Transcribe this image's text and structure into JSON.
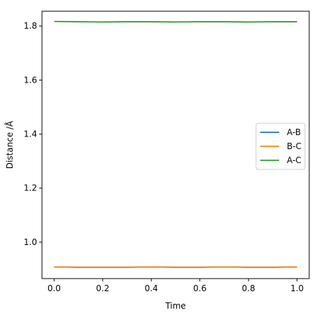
{
  "chart_data": {
    "type": "line",
    "xlabel": "Time",
    "ylabel": "Distance /Å",
    "xlim": [
      -0.05,
      1.05
    ],
    "ylim": [
      0.865,
      1.855
    ],
    "xticks": [
      0.0,
      0.2,
      0.4,
      0.6,
      0.8,
      1.0
    ],
    "xtick_labels": [
      "0.0",
      "0.2",
      "0.4",
      "0.6",
      "0.8",
      "1.0"
    ],
    "yticks": [
      1.0,
      1.2,
      1.4,
      1.6,
      1.8
    ],
    "ytick_labels": [
      "1.0",
      "1.2",
      "1.4",
      "1.6",
      "1.8"
    ],
    "grid": false,
    "legend_position": "right",
    "x": [
      0.0,
      0.1,
      0.2,
      0.3,
      0.4,
      0.5,
      0.6,
      0.7,
      0.8,
      0.9,
      1.0
    ],
    "series": [
      {
        "name": "A-B",
        "color": "#1f77b4",
        "values": [
          0.908,
          0.907,
          0.907,
          0.907,
          0.908,
          0.907,
          0.907,
          0.908,
          0.907,
          0.907,
          0.908
        ]
      },
      {
        "name": "B-C",
        "color": "#ff7f0e",
        "values": [
          0.908,
          0.907,
          0.907,
          0.907,
          0.908,
          0.907,
          0.907,
          0.908,
          0.907,
          0.907,
          0.908
        ]
      },
      {
        "name": "A-C",
        "color": "#2ca02c",
        "values": [
          1.817,
          1.816,
          1.815,
          1.816,
          1.816,
          1.815,
          1.816,
          1.816,
          1.815,
          1.816,
          1.816
        ]
      }
    ]
  }
}
